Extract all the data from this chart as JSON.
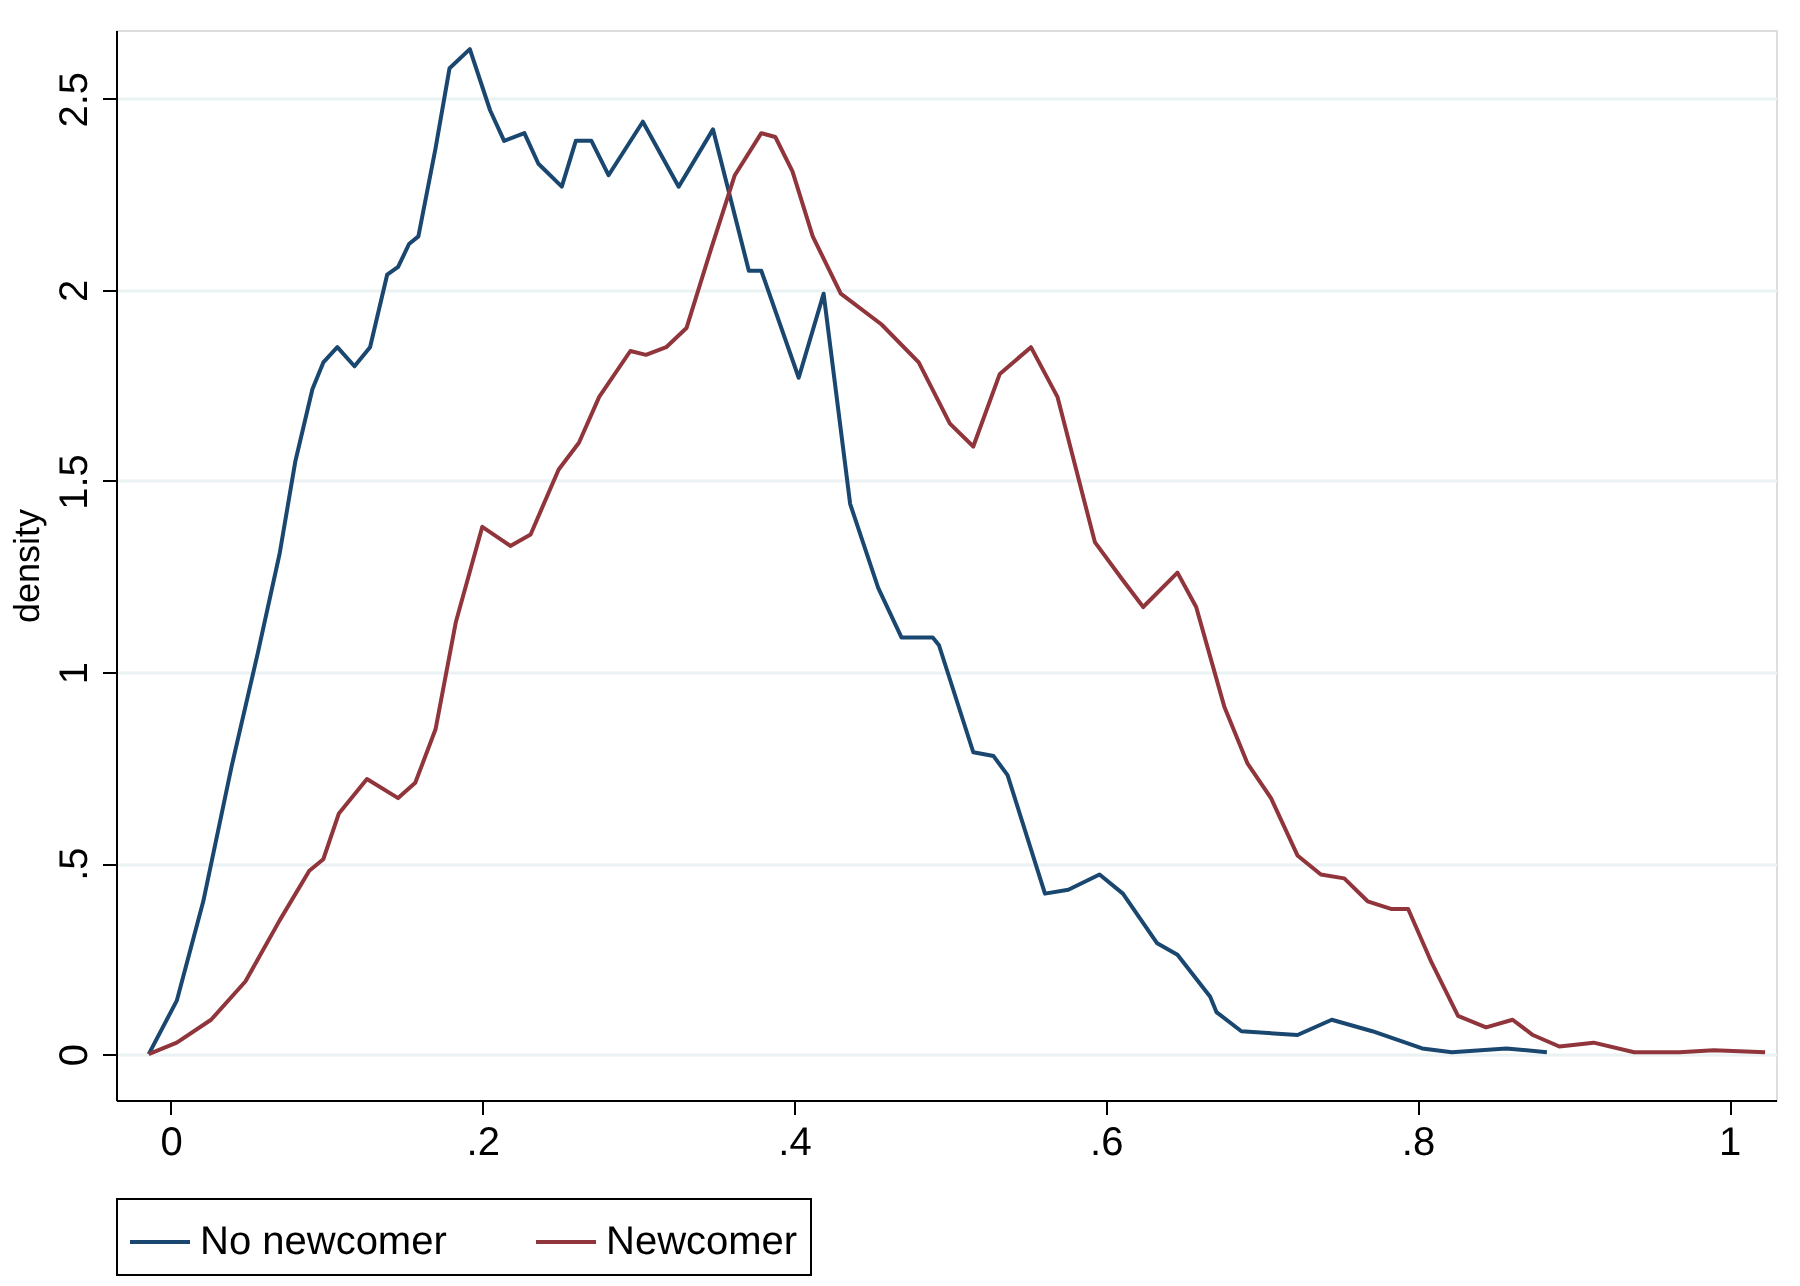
{
  "chart_data": {
    "type": "line",
    "ylabel": "density",
    "xlim": [
      -0.035,
      1.03
    ],
    "ylim": [
      -0.12,
      2.68
    ],
    "xticks": [
      0,
      {
        "value": 0.2,
        "label": ".2"
      },
      {
        "value": 0.4,
        "label": ".4"
      },
      {
        "value": 0.6,
        "label": ".6"
      },
      {
        "value": 0.8,
        "label": ".8"
      },
      1
    ],
    "yticks": [
      0,
      {
        "value": 0.5,
        "label": ".5"
      },
      1,
      1.5,
      2,
      2.5
    ],
    "grid": "y",
    "legend": "bottom",
    "marker": "none",
    "line_style": "solid",
    "series": [
      {
        "name": "No newcomer",
        "color": "#1a476f",
        "x": [
          -0.014,
          0.004,
          0.021,
          0.039,
          0.056,
          0.07,
          0.08,
          0.091,
          0.098,
          0.107,
          0.118,
          0.128,
          0.139,
          0.146,
          0.153,
          0.159,
          0.17,
          0.179,
          0.192,
          0.205,
          0.214,
          0.227,
          0.236,
          0.251,
          0.26,
          0.27,
          0.281,
          0.303,
          0.326,
          0.348,
          0.371,
          0.379,
          0.403,
          0.419,
          0.436,
          0.454,
          0.469,
          0.489,
          0.493,
          0.515,
          0.528,
          0.537,
          0.561,
          0.576,
          0.596,
          0.611,
          0.633,
          0.646,
          0.667,
          0.671,
          0.687,
          0.723,
          0.745,
          0.771,
          0.803,
          0.822,
          0.857,
          0.883
        ],
        "values": [
          0,
          0.14,
          0.4,
          0.75,
          1.05,
          1.31,
          1.55,
          1.74,
          1.81,
          1.85,
          1.8,
          1.85,
          2.04,
          2.06,
          2.12,
          2.14,
          2.37,
          2.58,
          2.63,
          2.47,
          2.39,
          2.41,
          2.33,
          2.27,
          2.39,
          2.39,
          2.3,
          2.44,
          2.27,
          2.42,
          2.05,
          2.05,
          1.77,
          1.99,
          1.44,
          1.22,
          1.09,
          1.09,
          1.07,
          0.79,
          0.78,
          0.73,
          0.42,
          0.43,
          0.47,
          0.42,
          0.29,
          0.26,
          0.15,
          0.11,
          0.06,
          0.05,
          0.09,
          0.06,
          0.015,
          0.005,
          0.015,
          0.005
        ]
      },
      {
        "name": "Newcomer",
        "color": "#90353b",
        "x": [
          -0.014,
          0.004,
          0.026,
          0.048,
          0.07,
          0.089,
          0.098,
          0.108,
          0.126,
          0.146,
          0.157,
          0.17,
          0.183,
          0.2,
          0.218,
          0.231,
          0.249,
          0.262,
          0.275,
          0.295,
          0.305,
          0.318,
          0.331,
          0.347,
          0.362,
          0.379,
          0.388,
          0.399,
          0.412,
          0.43,
          0.456,
          0.48,
          0.5,
          0.515,
          0.532,
          0.552,
          0.569,
          0.593,
          0.611,
          0.624,
          0.646,
          0.658,
          0.676,
          0.691,
          0.706,
          0.723,
          0.738,
          0.753,
          0.768,
          0.783,
          0.794,
          0.809,
          0.826,
          0.844,
          0.861,
          0.874,
          0.891,
          0.913,
          0.939,
          0.968,
          0.99,
          1.023
        ],
        "values": [
          0,
          0.03,
          0.09,
          0.19,
          0.35,
          0.48,
          0.51,
          0.63,
          0.72,
          0.67,
          0.71,
          0.85,
          1.13,
          1.38,
          1.33,
          1.36,
          1.53,
          1.6,
          1.72,
          1.84,
          1.83,
          1.85,
          1.9,
          2.11,
          2.3,
          2.41,
          2.4,
          2.31,
          2.14,
          1.99,
          1.91,
          1.81,
          1.65,
          1.59,
          1.78,
          1.85,
          1.72,
          1.34,
          1.24,
          1.17,
          1.26,
          1.17,
          0.91,
          0.76,
          0.67,
          0.52,
          0.47,
          0.46,
          0.4,
          0.38,
          0.38,
          0.24,
          0.1,
          0.07,
          0.09,
          0.05,
          0.02,
          0.03,
          0.005,
          0.005,
          0.01,
          0.005
        ]
      }
    ]
  }
}
